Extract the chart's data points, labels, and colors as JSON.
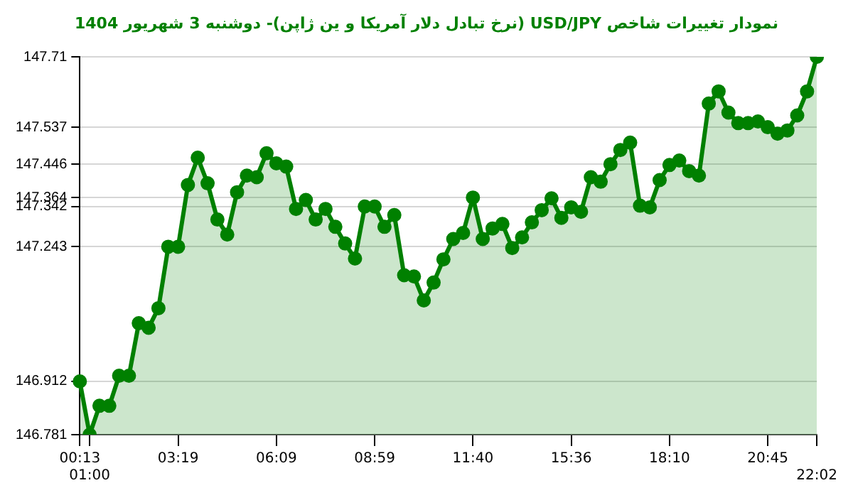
{
  "chart_data": {
    "type": "area",
    "title": "نمودار تغییرات شاخص USD/JPY (نرخ تبادل دلار آمریکا و ین ژاپن)- دوشنبه  3 شهریور 1404",
    "categories": [
      "00:13",
      "01:00",
      null,
      null,
      null,
      null,
      null,
      null,
      null,
      null,
      "03:19",
      null,
      null,
      null,
      null,
      null,
      null,
      null,
      null,
      null,
      "06:09",
      null,
      null,
      null,
      null,
      null,
      null,
      null,
      null,
      null,
      "08:59",
      null,
      null,
      null,
      null,
      null,
      null,
      null,
      null,
      null,
      "11:40",
      null,
      null,
      null,
      null,
      null,
      null,
      null,
      null,
      null,
      "15:36",
      null,
      null,
      null,
      null,
      null,
      null,
      null,
      null,
      null,
      "18:10",
      null,
      null,
      null,
      null,
      null,
      null,
      null,
      null,
      null,
      "20:45",
      null,
      null,
      null,
      null,
      "22:02"
    ],
    "series": [
      {
        "color": "#008000",
        "values": [
          146.912,
          146.781,
          146.852,
          146.852,
          146.926,
          146.926,
          147.055,
          147.044,
          147.092,
          147.243,
          147.243,
          147.395,
          147.462,
          147.399,
          147.31,
          147.273,
          147.377,
          147.418,
          147.414,
          147.473,
          147.448,
          147.44,
          147.336,
          147.358,
          147.31,
          147.336,
          147.292,
          147.251,
          147.214,
          147.342,
          147.342,
          147.292,
          147.321,
          147.173,
          147.17,
          147.111,
          147.155,
          147.212,
          147.262,
          147.277,
          147.364,
          147.262,
          147.288,
          147.299,
          147.24,
          147.266,
          147.303,
          147.333,
          147.362,
          147.314,
          147.34,
          147.329,
          147.414,
          147.403,
          147.446,
          147.481,
          147.499,
          147.344,
          147.34,
          147.407,
          147.444,
          147.455,
          147.429,
          147.418,
          147.595,
          147.625,
          147.573,
          147.547,
          147.547,
          147.551,
          147.537,
          147.521,
          147.529,
          147.566,
          147.625,
          147.71
        ]
      }
    ],
    "ylim": [
      146.781,
      147.71
    ],
    "yticks": [
      146.781,
      146.912,
      147.243,
      147.342,
      147.364,
      147.446,
      147.537,
      147.71
    ],
    "grid": "y",
    "marker": "circle",
    "line_style": "solid",
    "legend": false
  }
}
